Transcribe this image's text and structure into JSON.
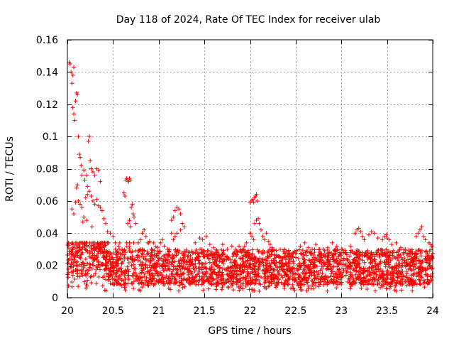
{
  "chart_data": {
    "type": "scatter",
    "title": "Day 118 of 2024, Rate Of TEC Index for receiver ulab",
    "xlabel": "GPS time / hours",
    "ylabel": "ROTI / TECUs",
    "xlim": [
      20,
      24
    ],
    "ylim": [
      0,
      0.16
    ],
    "grid": true,
    "marker": "+",
    "marker_color": "#ff0000",
    "xticks": [
      {
        "value": 20,
        "label": "20"
      },
      {
        "value": 20.5,
        "label": "20.5"
      },
      {
        "value": 21,
        "label": "21"
      },
      {
        "value": 21.5,
        "label": "21.5"
      },
      {
        "value": 22,
        "label": "22"
      },
      {
        "value": 22.5,
        "label": "22.5"
      },
      {
        "value": 23,
        "label": "23"
      },
      {
        "value": 23.5,
        "label": "23.5"
      },
      {
        "value": 24,
        "label": "24"
      }
    ],
    "yticks": [
      {
        "value": 0,
        "label": "0"
      },
      {
        "value": 0.02,
        "label": "0.02"
      },
      {
        "value": 0.04,
        "label": "0.04"
      },
      {
        "value": 0.06,
        "label": "0.06"
      },
      {
        "value": 0.08,
        "label": "0.08"
      },
      {
        "value": 0.1,
        "label": "0.1"
      },
      {
        "value": 0.12,
        "label": "0.12"
      },
      {
        "value": 0.14,
        "label": "0.14"
      },
      {
        "value": 0.16,
        "label": "0.16"
      }
    ],
    "series": [
      {
        "name": "ROTI",
        "points": [
          [
            20.02,
            0.146
          ],
          [
            20.03,
            0.145
          ],
          [
            20.04,
            0.14
          ],
          [
            20.05,
            0.133
          ],
          [
            20.06,
            0.138
          ],
          [
            20.07,
            0.143
          ],
          [
            20.06,
            0.118
          ],
          [
            20.07,
            0.114
          ],
          [
            20.08,
            0.11
          ],
          [
            20.09,
            0.122
          ],
          [
            20.1,
            0.127
          ],
          [
            20.11,
            0.126
          ],
          [
            20.12,
            0.1
          ],
          [
            20.13,
            0.089
          ],
          [
            20.14,
            0.087
          ],
          [
            20.15,
            0.082
          ],
          [
            20.16,
            0.076
          ],
          [
            20.18,
            0.079
          ],
          [
            20.19,
            0.073
          ],
          [
            20.21,
            0.076
          ],
          [
            20.22,
            0.069
          ],
          [
            20.23,
            0.097
          ],
          [
            20.24,
            0.1
          ],
          [
            20.25,
            0.085
          ],
          [
            20.26,
            0.08
          ],
          [
            20.28,
            0.078
          ],
          [
            20.3,
            0.076
          ],
          [
            20.32,
            0.08
          ],
          [
            20.34,
            0.079
          ],
          [
            20.36,
            0.072
          ],
          [
            20.1,
            0.068
          ],
          [
            20.11,
            0.07
          ],
          [
            20.12,
            0.06
          ],
          [
            20.14,
            0.058
          ],
          [
            20.16,
            0.056
          ],
          [
            20.18,
            0.05
          ],
          [
            20.2,
            0.062
          ],
          [
            20.22,
            0.064
          ],
          [
            20.24,
            0.066
          ],
          [
            20.26,
            0.063
          ],
          [
            20.28,
            0.06
          ],
          [
            20.3,
            0.058
          ],
          [
            20.32,
            0.061
          ],
          [
            20.34,
            0.057
          ],
          [
            20.36,
            0.056
          ],
          [
            20.38,
            0.054
          ],
          [
            20.4,
            0.049
          ],
          [
            20.42,
            0.046
          ],
          [
            20.05,
            0.055
          ],
          [
            20.07,
            0.052
          ],
          [
            20.09,
            0.059
          ],
          [
            20.17,
            0.047
          ],
          [
            20.21,
            0.048
          ],
          [
            20.27,
            0.044
          ],
          [
            20.44,
            0.041
          ],
          [
            20.47,
            0.04
          ],
          [
            20.5,
            0.038
          ],
          [
            20.62,
            0.065
          ],
          [
            20.63,
            0.063
          ],
          [
            20.64,
            0.073
          ],
          [
            20.65,
            0.074
          ],
          [
            20.66,
            0.073
          ],
          [
            20.67,
            0.072
          ],
          [
            20.68,
            0.074
          ],
          [
            20.69,
            0.073
          ],
          [
            20.7,
            0.056
          ],
          [
            20.71,
            0.058
          ],
          [
            20.72,
            0.052
          ],
          [
            20.73,
            0.05
          ],
          [
            20.75,
            0.046
          ],
          [
            20.66,
            0.046
          ],
          [
            20.68,
            0.048
          ],
          [
            20.69,
            0.044
          ],
          [
            20.8,
            0.036
          ],
          [
            20.82,
            0.04
          ],
          [
            20.84,
            0.042
          ],
          [
            20.86,
            0.038
          ],
          [
            20.88,
            0.034
          ],
          [
            20.9,
            0.035
          ],
          [
            20.92,
            0.03
          ],
          [
            21.02,
            0.034
          ],
          [
            21.04,
            0.036
          ],
          [
            21.06,
            0.032
          ],
          [
            21.1,
            0.03
          ],
          [
            21.14,
            0.048
          ],
          [
            21.16,
            0.05
          ],
          [
            21.18,
            0.054
          ],
          [
            21.2,
            0.056
          ],
          [
            21.22,
            0.055
          ],
          [
            21.24,
            0.052
          ],
          [
            21.26,
            0.046
          ],
          [
            21.28,
            0.044
          ],
          [
            21.24,
            0.042
          ],
          [
            21.2,
            0.04
          ],
          [
            21.18,
            0.038
          ],
          [
            21.16,
            0.036
          ],
          [
            21.14,
            0.04
          ],
          [
            21.4,
            0.034
          ],
          [
            21.45,
            0.037
          ],
          [
            21.48,
            0.036
          ],
          [
            21.52,
            0.038
          ],
          [
            21.56,
            0.033
          ],
          [
            21.6,
            0.031
          ],
          [
            21.7,
            0.033
          ],
          [
            21.75,
            0.03
          ],
          [
            21.8,
            0.032
          ],
          [
            21.84,
            0.03
          ],
          [
            21.88,
            0.032
          ],
          [
            21.92,
            0.03
          ],
          [
            21.94,
            0.032
          ],
          [
            21.96,
            0.034
          ],
          [
            21.98,
            0.028
          ],
          [
            22.0,
            0.059
          ],
          [
            22.02,
            0.06
          ],
          [
            22.03,
            0.061
          ],
          [
            22.04,
            0.059
          ],
          [
            22.05,
            0.062
          ],
          [
            22.06,
            0.063
          ],
          [
            22.07,
            0.064
          ],
          [
            22.08,
            0.06
          ],
          [
            22.05,
            0.046
          ],
          [
            22.07,
            0.048
          ],
          [
            22.09,
            0.049
          ],
          [
            22.1,
            0.046
          ],
          [
            22.12,
            0.042
          ],
          [
            22.14,
            0.038
          ],
          [
            22.16,
            0.036
          ],
          [
            22.18,
            0.04
          ],
          [
            22.2,
            0.035
          ],
          [
            22.22,
            0.033
          ],
          [
            22.24,
            0.031
          ],
          [
            22.0,
            0.04
          ],
          [
            22.02,
            0.038
          ],
          [
            22.04,
            0.036
          ],
          [
            22.55,
            0.032
          ],
          [
            22.6,
            0.034
          ],
          [
            22.64,
            0.031
          ],
          [
            22.68,
            0.03
          ],
          [
            22.72,
            0.033
          ],
          [
            22.8,
            0.03
          ],
          [
            22.85,
            0.031
          ],
          [
            22.9,
            0.034
          ],
          [
            22.95,
            0.032
          ],
          [
            23.0,
            0.03
          ],
          [
            23.05,
            0.028
          ],
          [
            23.1,
            0.032
          ],
          [
            23.15,
            0.04
          ],
          [
            23.17,
            0.042
          ],
          [
            23.19,
            0.043
          ],
          [
            23.21,
            0.041
          ],
          [
            23.23,
            0.038
          ],
          [
            23.25,
            0.036
          ],
          [
            23.3,
            0.039
          ],
          [
            23.33,
            0.041
          ],
          [
            23.36,
            0.04
          ],
          [
            23.4,
            0.037
          ],
          [
            23.45,
            0.036
          ],
          [
            23.47,
            0.038
          ],
          [
            23.49,
            0.039
          ],
          [
            23.5,
            0.037
          ],
          [
            23.52,
            0.036
          ],
          [
            23.55,
            0.033
          ],
          [
            23.6,
            0.034
          ],
          [
            23.65,
            0.031
          ],
          [
            23.7,
            0.03
          ],
          [
            23.82,
            0.038
          ],
          [
            23.84,
            0.04
          ],
          [
            23.86,
            0.042
          ],
          [
            23.88,
            0.044
          ],
          [
            23.9,
            0.038
          ],
          [
            23.92,
            0.036
          ],
          [
            23.96,
            0.034
          ],
          [
            23.98,
            0.033
          ],
          [
            23.99,
            0.032
          ]
        ]
      }
    ]
  }
}
